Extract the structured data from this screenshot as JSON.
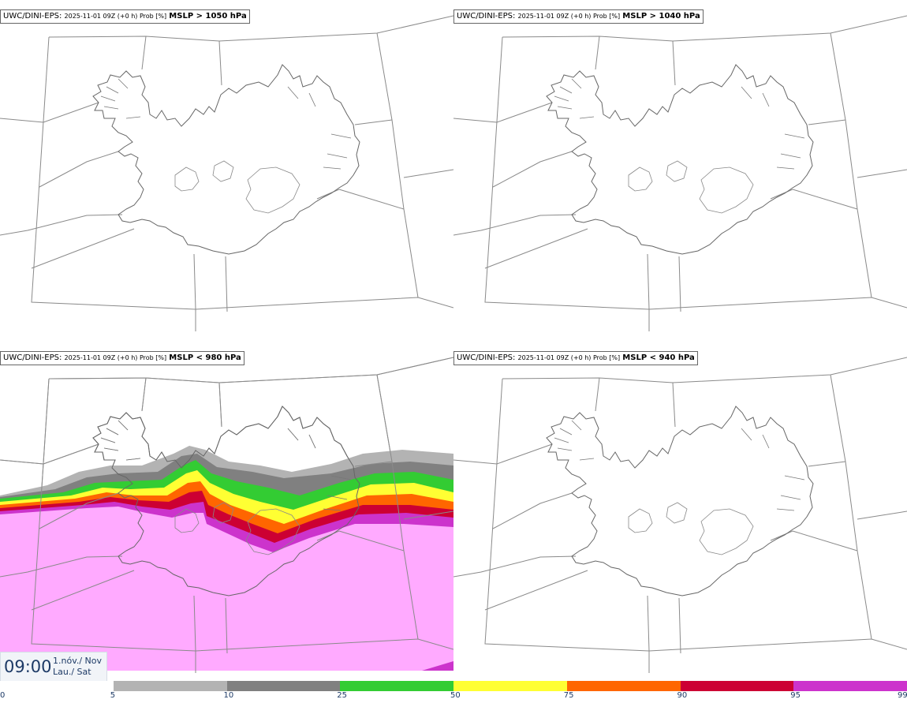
{
  "panels": [
    {
      "model": "UWC/DINI-EPS",
      "meta": "2025-11-01 09Z (+0 h) Prob [%]",
      "condition": "MSLP > 1050 hPa"
    },
    {
      "model": "UWC/DINI-EPS",
      "meta": "2025-11-01 09Z (+0 h) Prob [%]",
      "condition": "MSLP > 1040 hPa"
    },
    {
      "model": "UWC/DINI-EPS",
      "meta": "2025-11-01 09Z (+0 h) Prob [%]",
      "condition": "MSLP < 980 hPa"
    },
    {
      "model": "UWC/DINI-EPS",
      "meta": "2025-11-01 09Z (+0 h) Prob [%]",
      "condition": "MSLP < 940 hPa"
    }
  ],
  "valid_time": {
    "time": "09:00",
    "date_line1": "1.nóv./ Nov",
    "date_line2": "Lau./ Sat"
  },
  "colorbar": {
    "ticks": [
      "0",
      "5",
      "10",
      "25",
      "50",
      "75",
      "90",
      "95",
      "99"
    ],
    "colors": [
      "#ffffff",
      "#b3b3b3",
      "#808080",
      "#33cc33",
      "#ffff33",
      "#ff6600",
      "#cc0033",
      "#cc33cc",
      "#ffaaff"
    ]
  }
}
